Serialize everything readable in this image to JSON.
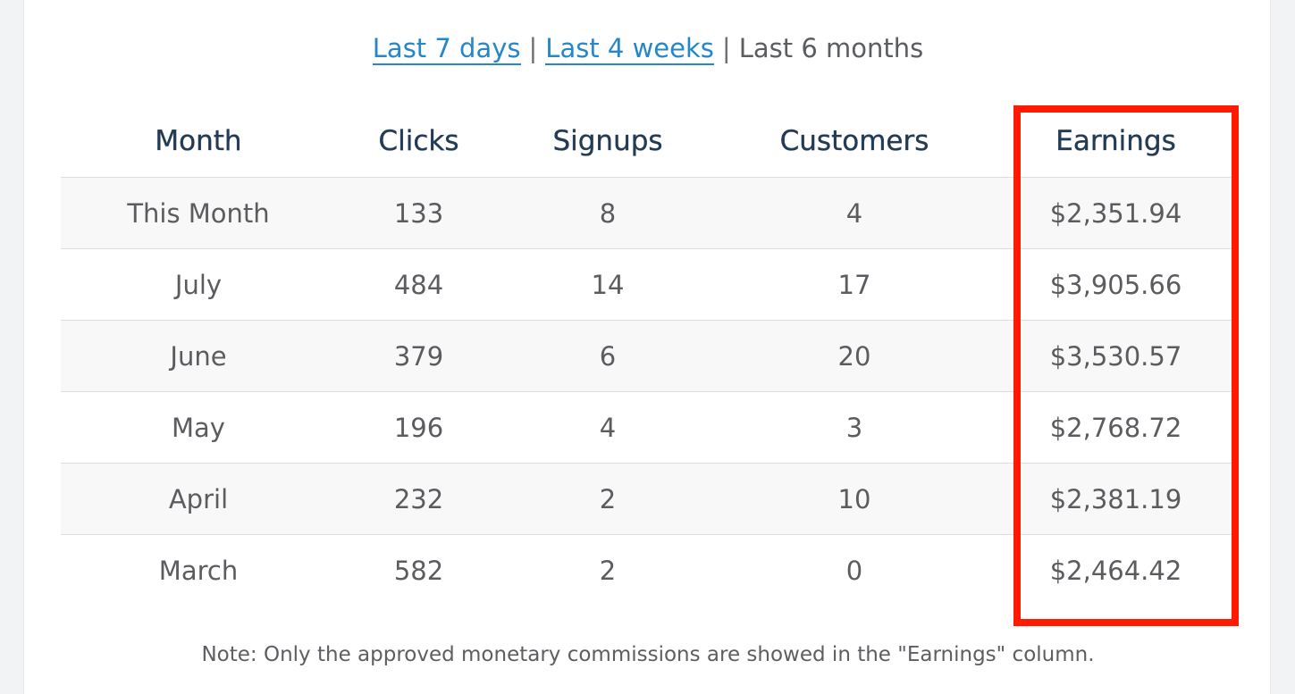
{
  "range_nav": {
    "options": [
      {
        "label": "Last 7 days",
        "active": false
      },
      {
        "label": "Last 4 weeks",
        "active": false
      },
      {
        "label": "Last 6 months",
        "active": true
      }
    ],
    "separator": "|"
  },
  "table": {
    "headers": {
      "month": "Month",
      "clicks": "Clicks",
      "signups": "Signups",
      "customers": "Customers",
      "earnings": "Earnings"
    },
    "rows": [
      {
        "month": "This Month",
        "clicks": "133",
        "signups": "8",
        "customers": "4",
        "earnings": "$2,351.94"
      },
      {
        "month": "July",
        "clicks": "484",
        "signups": "14",
        "customers": "17",
        "earnings": "$3,905.66"
      },
      {
        "month": "June",
        "clicks": "379",
        "signups": "6",
        "customers": "20",
        "earnings": "$3,530.57"
      },
      {
        "month": "May",
        "clicks": "196",
        "signups": "4",
        "customers": "3",
        "earnings": "$2,768.72"
      },
      {
        "month": "April",
        "clicks": "232",
        "signups": "2",
        "customers": "10",
        "earnings": "$2,381.19"
      },
      {
        "month": "March",
        "clicks": "582",
        "signups": "2",
        "customers": "0",
        "earnings": "$2,464.42"
      }
    ]
  },
  "note": "Note: Only the approved monetary commissions are showed in the \"Earnings\" column.",
  "colors": {
    "link": "#2487c9",
    "header_text": "#243b55",
    "highlight_border": "#ff1a00",
    "striped_row": "#f8f8f8"
  }
}
